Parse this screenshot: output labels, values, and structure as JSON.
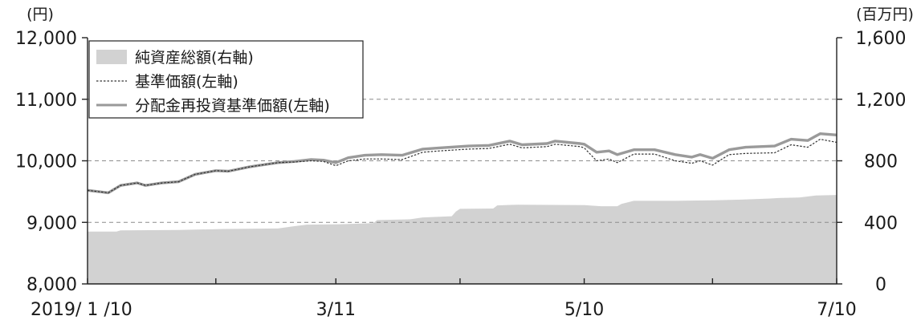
{
  "chart_data": {
    "type": "line",
    "left_axis": {
      "unit": "(円)",
      "ylim": [
        8000,
        12000
      ],
      "ticks": [
        "8,000",
        "9,000",
        "10,000",
        "11,000",
        "12,000"
      ]
    },
    "right_axis": {
      "unit": "(百万円)",
      "ylim": [
        0,
        1600
      ],
      "ticks": [
        "0",
        "400",
        "800",
        "1,200",
        "1,600"
      ]
    },
    "x_axis": {
      "start": "2019-01-10",
      "end": "2019-07-10",
      "labels": [
        {
          "date": "2019-01-10",
          "text": "2019/ 1 /10"
        },
        {
          "date": "2019-03-11",
          "text": "3/11"
        },
        {
          "date": "2019-05-10",
          "text": "5/10"
        },
        {
          "date": "2019-07-10",
          "text": "7/10"
        }
      ],
      "minor_ticks": [
        "2019-02-10",
        "2019-04-10",
        "2019-06-10"
      ]
    },
    "gridlines": [
      9000,
      10000,
      11000
    ],
    "legend": [
      {
        "key": "nav_total",
        "label": "純資産総額(右軸)"
      },
      {
        "key": "nav",
        "label": "基準価額(左軸)"
      },
      {
        "key": "reinvested",
        "label": "分配金再投資基準価額(左軸)"
      }
    ],
    "legend_placement": "top-left",
    "colors": {
      "area": "#d2d2d2",
      "nav": "#333333",
      "reinvested": "#9a9a9a",
      "grid": "#8c8c8c",
      "axis": "#222222"
    },
    "series": [
      {
        "key": "nav_total",
        "name": "純資産総額(右軸)",
        "type": "area",
        "axis": "right",
        "points": [
          [
            "2019-01-10",
            340
          ],
          [
            "2019-01-17",
            340
          ],
          [
            "2019-01-18",
            348
          ],
          [
            "2019-02-01",
            350
          ],
          [
            "2019-02-12",
            357
          ],
          [
            "2019-02-25",
            360
          ],
          [
            "2019-03-01",
            375
          ],
          [
            "2019-03-04",
            385
          ],
          [
            "2019-03-12",
            388
          ],
          [
            "2019-03-20",
            395
          ],
          [
            "2019-03-21",
            415
          ],
          [
            "2019-03-29",
            420
          ],
          [
            "2019-04-01",
            432
          ],
          [
            "2019-04-08",
            440
          ],
          [
            "2019-04-09",
            470
          ],
          [
            "2019-04-10",
            488
          ],
          [
            "2019-04-18",
            490
          ],
          [
            "2019-04-19",
            510
          ],
          [
            "2019-04-24",
            515
          ],
          [
            "2019-05-10",
            512
          ],
          [
            "2019-05-14",
            505
          ],
          [
            "2019-05-18",
            505
          ],
          [
            "2019-05-19",
            520
          ],
          [
            "2019-05-22",
            540
          ],
          [
            "2019-05-31",
            540
          ],
          [
            "2019-06-01",
            540
          ],
          [
            "2019-06-10",
            543
          ],
          [
            "2019-06-17",
            548
          ],
          [
            "2019-06-24",
            555
          ],
          [
            "2019-06-26",
            558
          ],
          [
            "2019-07-01",
            562
          ],
          [
            "2019-07-05",
            575
          ],
          [
            "2019-07-10",
            578
          ]
        ]
      },
      {
        "key": "nav",
        "name": "基準価額(左軸)",
        "type": "line",
        "axis": "left",
        "points": [
          [
            "2019-01-10",
            9520
          ],
          [
            "2019-01-15",
            9480
          ],
          [
            "2019-01-18",
            9600
          ],
          [
            "2019-01-22",
            9640
          ],
          [
            "2019-01-24",
            9600
          ],
          [
            "2019-01-28",
            9640
          ],
          [
            "2019-02-01",
            9660
          ],
          [
            "2019-02-05",
            9780
          ],
          [
            "2019-02-10",
            9840
          ],
          [
            "2019-02-13",
            9830
          ],
          [
            "2019-02-18",
            9900
          ],
          [
            "2019-02-20",
            9920
          ],
          [
            "2019-02-25",
            9970
          ],
          [
            "2019-03-01",
            9980
          ],
          [
            "2019-03-05",
            10000
          ],
          [
            "2019-03-08",
            9990
          ],
          [
            "2019-03-11",
            9920
          ],
          [
            "2019-03-14",
            10000
          ],
          [
            "2019-03-18",
            10030
          ],
          [
            "2019-03-22",
            10030
          ],
          [
            "2019-03-27",
            10020
          ],
          [
            "2019-04-01",
            10140
          ],
          [
            "2019-04-05",
            10160
          ],
          [
            "2019-04-12",
            10190
          ],
          [
            "2019-04-17",
            10200
          ],
          [
            "2019-04-22",
            10270
          ],
          [
            "2019-04-25",
            10210
          ],
          [
            "2019-05-01",
            10230
          ],
          [
            "2019-05-03",
            10270
          ],
          [
            "2019-05-09",
            10230
          ],
          [
            "2019-05-10",
            10210
          ],
          [
            "2019-05-13",
            10000
          ],
          [
            "2019-05-16",
            10030
          ],
          [
            "2019-05-18",
            9970
          ],
          [
            "2019-05-22",
            10110
          ],
          [
            "2019-05-27",
            10110
          ],
          [
            "2019-06-01",
            10000
          ],
          [
            "2019-06-05",
            9960
          ],
          [
            "2019-06-07",
            10000
          ],
          [
            "2019-06-10",
            9930
          ],
          [
            "2019-06-14",
            10100
          ],
          [
            "2019-06-18",
            10120
          ],
          [
            "2019-06-25",
            10130
          ],
          [
            "2019-06-29",
            10260
          ],
          [
            "2019-07-03",
            10220
          ],
          [
            "2019-07-06",
            10350
          ],
          [
            "2019-07-10",
            10300
          ]
        ]
      },
      {
        "key": "reinvested",
        "name": "分配金再投資基準価額(左軸)",
        "type": "line",
        "axis": "left",
        "points": [
          [
            "2019-01-10",
            9520
          ],
          [
            "2019-01-15",
            9480
          ],
          [
            "2019-01-18",
            9600
          ],
          [
            "2019-01-22",
            9640
          ],
          [
            "2019-01-24",
            9600
          ],
          [
            "2019-01-28",
            9640
          ],
          [
            "2019-02-01",
            9660
          ],
          [
            "2019-02-05",
            9780
          ],
          [
            "2019-02-10",
            9840
          ],
          [
            "2019-02-13",
            9830
          ],
          [
            "2019-02-18",
            9900
          ],
          [
            "2019-02-20",
            9920
          ],
          [
            "2019-02-25",
            9970
          ],
          [
            "2019-03-01",
            9990
          ],
          [
            "2019-03-05",
            10020
          ],
          [
            "2019-03-08",
            10010
          ],
          [
            "2019-03-11",
            9970
          ],
          [
            "2019-03-14",
            10050
          ],
          [
            "2019-03-18",
            10090
          ],
          [
            "2019-03-22",
            10100
          ],
          [
            "2019-03-27",
            10090
          ],
          [
            "2019-04-01",
            10190
          ],
          [
            "2019-04-05",
            10210
          ],
          [
            "2019-04-12",
            10240
          ],
          [
            "2019-04-17",
            10250
          ],
          [
            "2019-04-22",
            10320
          ],
          [
            "2019-04-25",
            10260
          ],
          [
            "2019-05-01",
            10280
          ],
          [
            "2019-05-03",
            10320
          ],
          [
            "2019-05-09",
            10280
          ],
          [
            "2019-05-10",
            10270
          ],
          [
            "2019-05-13",
            10140
          ],
          [
            "2019-05-16",
            10160
          ],
          [
            "2019-05-18",
            10100
          ],
          [
            "2019-05-22",
            10180
          ],
          [
            "2019-05-27",
            10180
          ],
          [
            "2019-06-01",
            10100
          ],
          [
            "2019-06-05",
            10060
          ],
          [
            "2019-06-07",
            10100
          ],
          [
            "2019-06-10",
            10040
          ],
          [
            "2019-06-14",
            10180
          ],
          [
            "2019-06-18",
            10220
          ],
          [
            "2019-06-25",
            10240
          ],
          [
            "2019-06-29",
            10350
          ],
          [
            "2019-07-03",
            10330
          ],
          [
            "2019-07-06",
            10440
          ],
          [
            "2019-07-10",
            10420
          ]
        ]
      }
    ]
  }
}
